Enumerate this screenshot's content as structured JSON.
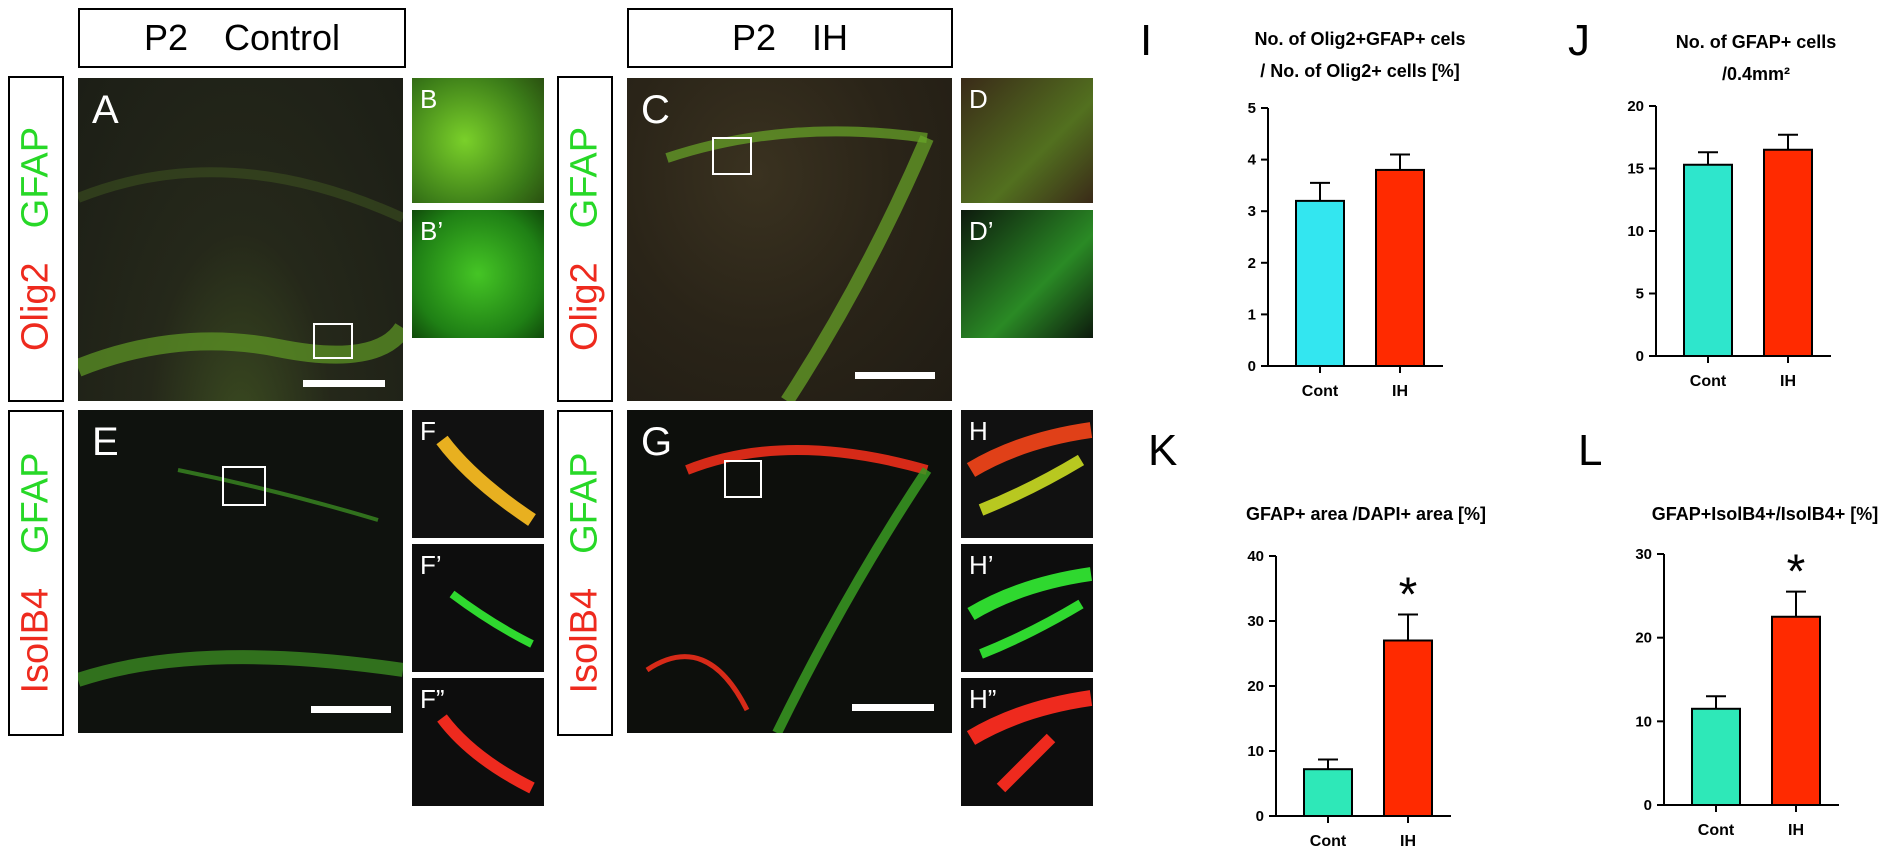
{
  "headers": {
    "control": {
      "age": "P2",
      "group": "Control"
    },
    "ih": {
      "age": "P2",
      "group": "IH"
    }
  },
  "stain_labels": {
    "olig2_row": {
      "green": "GFAP",
      "red": "Olig2"
    },
    "isolb4_row": {
      "green": "GFAP",
      "red": "IsolB4"
    }
  },
  "panels": {
    "A": "A",
    "B": "B",
    "B2": "B’",
    "C": "C",
    "D": "D",
    "D2": "D’",
    "E": "E",
    "F": "F",
    "F2": "F’",
    "F3": "F”",
    "G": "G",
    "H": "H",
    "H2": "H’",
    "H3": "H”"
  },
  "colors": {
    "control_I": "#33e6f0",
    "control_J": "#2ee6cc",
    "control_KL": "#2ee8b8",
    "ih": "#ff2a00",
    "gfap": "#2fd82f",
    "red_stain": "#ee2a1e"
  },
  "chart_data": [
    {
      "panel": "I",
      "type": "bar",
      "title": [
        "No. of Olig2+GFAP+ cels",
        "/ No. of Olig2+ cells [%]"
      ],
      "categories": [
        "Cont",
        "IH"
      ],
      "values": [
        3.2,
        3.8
      ],
      "errors": [
        0.35,
        0.3
      ],
      "ylim": [
        0,
        5
      ],
      "yticks": [
        0,
        1,
        2,
        3,
        4,
        5
      ],
      "significance": [
        "",
        ""
      ]
    },
    {
      "panel": "J",
      "type": "bar",
      "title": [
        "No. of GFAP+ cells",
        "/0.4mm²"
      ],
      "categories": [
        "Cont",
        "IH"
      ],
      "values": [
        15.3,
        16.5
      ],
      "errors": [
        1.0,
        1.2
      ],
      "ylim": [
        0,
        20
      ],
      "yticks": [
        0,
        5,
        10,
        15,
        20
      ],
      "significance": [
        "",
        ""
      ]
    },
    {
      "panel": "K",
      "type": "bar",
      "title": [
        "GFAP+ area /DAPI+ area [%]"
      ],
      "categories": [
        "Cont",
        "IH"
      ],
      "values": [
        7.2,
        27.0
      ],
      "errors": [
        1.5,
        4.0
      ],
      "ylim": [
        0,
        40
      ],
      "yticks": [
        0,
        10,
        20,
        30,
        40
      ],
      "significance": [
        "",
        "*"
      ]
    },
    {
      "panel": "L",
      "type": "bar",
      "title": [
        "GFAP+IsolB4+/IsolB4+ [%]"
      ],
      "categories": [
        "Cont",
        "IH"
      ],
      "values": [
        11.5,
        22.5
      ],
      "errors": [
        1.5,
        3.0
      ],
      "ylim": [
        0,
        30
      ],
      "yticks": [
        0,
        10,
        20,
        30
      ],
      "significance": [
        "",
        "*"
      ]
    }
  ]
}
